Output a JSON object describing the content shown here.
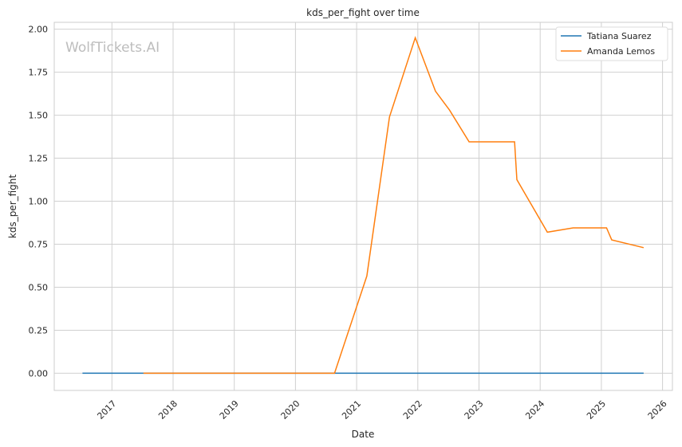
{
  "chart_data": {
    "type": "line",
    "title": "kds_per_fight over time",
    "xlabel": "Date",
    "ylabel": "kds_per_fight",
    "watermark": "WolfTickets.AI",
    "xlim": [
      "2016-01-22",
      "2026-03-01"
    ],
    "ylim": [
      -0.1,
      2.04
    ],
    "grid": true,
    "legend_position": "top-right",
    "x_ticks": [
      "2017",
      "2018",
      "2019",
      "2020",
      "2021",
      "2022",
      "2023",
      "2024",
      "2025",
      "2026"
    ],
    "y_ticks": [
      "0.00",
      "0.25",
      "0.50",
      "0.75",
      "1.00",
      "1.25",
      "1.50",
      "1.75",
      "2.00"
    ],
    "series": [
      {
        "name": "Tatiana Suarez",
        "color": "#1f77b4",
        "x": [
          "2016-07-09",
          "2025-09-10"
        ],
        "y": [
          0,
          0
        ]
      },
      {
        "name": "Amanda Lemos",
        "color": "#ff7f0e",
        "x": [
          "2017-07-08",
          "2020-08-22",
          "2021-03-03",
          "2021-07-16",
          "2021-12-17",
          "2022-04-16",
          "2022-07-09",
          "2022-11-03",
          "2023-08-01",
          "2023-08-15",
          "2024-02-13",
          "2024-07-16",
          "2025-02-01",
          "2025-03-04",
          "2025-09-10"
        ],
        "y": [
          0,
          0,
          0.565,
          1.49,
          1.95,
          1.64,
          1.53,
          1.345,
          1.345,
          1.125,
          0.82,
          0.845,
          0.845,
          0.775,
          0.73
        ]
      }
    ]
  }
}
